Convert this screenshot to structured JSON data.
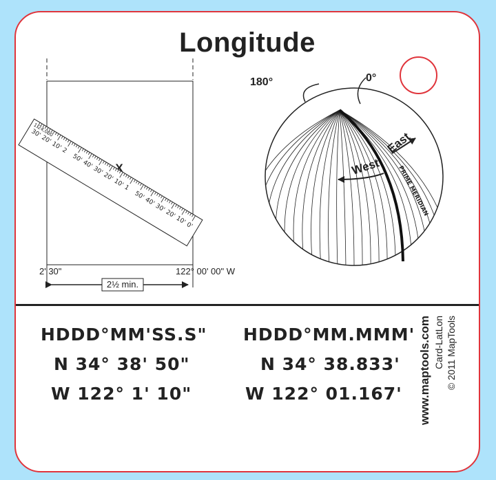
{
  "card": {
    "title": "Longitude",
    "border_color": "#e0343b",
    "background": "#aee3fb"
  },
  "ruler_diagram": {
    "scale_label": "1:24,000",
    "ruler_ticks_upper": [
      "30'",
      "20'",
      "10'",
      "2",
      "50'",
      "40'",
      "30'",
      "20'",
      "10'",
      "1",
      "50'",
      "40'",
      "30'",
      "20'",
      "10'",
      "0'"
    ],
    "marker": "X",
    "left_label": "2' 30\"",
    "right_label": "122° 00' 00\" W",
    "width_label": "2½ min."
  },
  "globe_diagram": {
    "label_180": "180°",
    "label_0": "0°",
    "label_west": "West",
    "label_east": "East",
    "label_meridian": "PRIME MERIDIAN"
  },
  "formats": {
    "dms_header": "HDDD°MM'SS.S\"",
    "dms_lat": "N 34° 38' 50\"",
    "dms_lon": "W 122° 1' 10\"",
    "dm_header": "HDDD°MM.MMM'",
    "dm_lat": "N 34° 38.833'",
    "dm_lon": "W 122° 01.167'"
  },
  "footer": {
    "site": "www.maptools.com",
    "card_name": "Card-LatLon",
    "copyright": "© 2011 MapTools"
  }
}
